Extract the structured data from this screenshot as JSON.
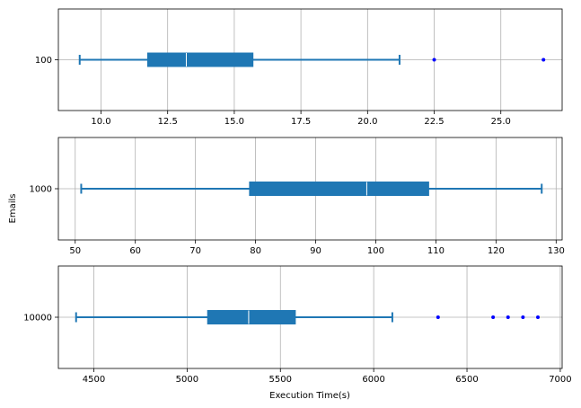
{
  "figure": {
    "ylabel": "Emails",
    "xlabel": "Execution Time(s)",
    "box_color": "#1f77b4",
    "outlier_color": "#0000ff",
    "grid_color": "#b0b0b0",
    "median_color": "#ffffff"
  },
  "chart_data": [
    {
      "type": "box",
      "category": "100",
      "whisker_low": 9.2,
      "q1": 11.75,
      "median": 13.2,
      "q3": 15.7,
      "whisker_high": 21.2,
      "outliers": [
        22.5,
        26.6
      ],
      "xlim": [
        8.4,
        27.3
      ],
      "xticks": [
        10.0,
        12.5,
        15.0,
        17.5,
        20.0,
        22.5,
        25.0
      ],
      "xtick_labels": [
        "10.0",
        "12.5",
        "15.0",
        "17.5",
        "20.0",
        "22.5",
        "25.0"
      ],
      "grid": true
    },
    {
      "type": "box",
      "category": "1000",
      "whisker_low": 51.0,
      "q1": 79.0,
      "median": 98.5,
      "q3": 108.8,
      "whisker_high": 127.6,
      "outliers": [],
      "xlim": [
        47.2,
        131.0
      ],
      "xticks": [
        50,
        60,
        70,
        80,
        90,
        100,
        110,
        120,
        130
      ],
      "xtick_labels": [
        "50",
        "60",
        "70",
        "80",
        "90",
        "100",
        "110",
        "120",
        "130"
      ],
      "grid": true
    },
    {
      "type": "box",
      "category": "10000",
      "whisker_low": 4405,
      "q1": 5110,
      "median": 5330,
      "q3": 5580,
      "whisker_high": 6100,
      "outliers": [
        6345,
        6640,
        6720,
        6800,
        6880
      ],
      "xlim": [
        4310,
        7010
      ],
      "xticks": [
        4500,
        5000,
        5500,
        6000,
        6500,
        7000
      ],
      "xtick_labels": [
        "4500",
        "5000",
        "5500",
        "6000",
        "6500",
        "7000"
      ],
      "grid": true
    }
  ]
}
